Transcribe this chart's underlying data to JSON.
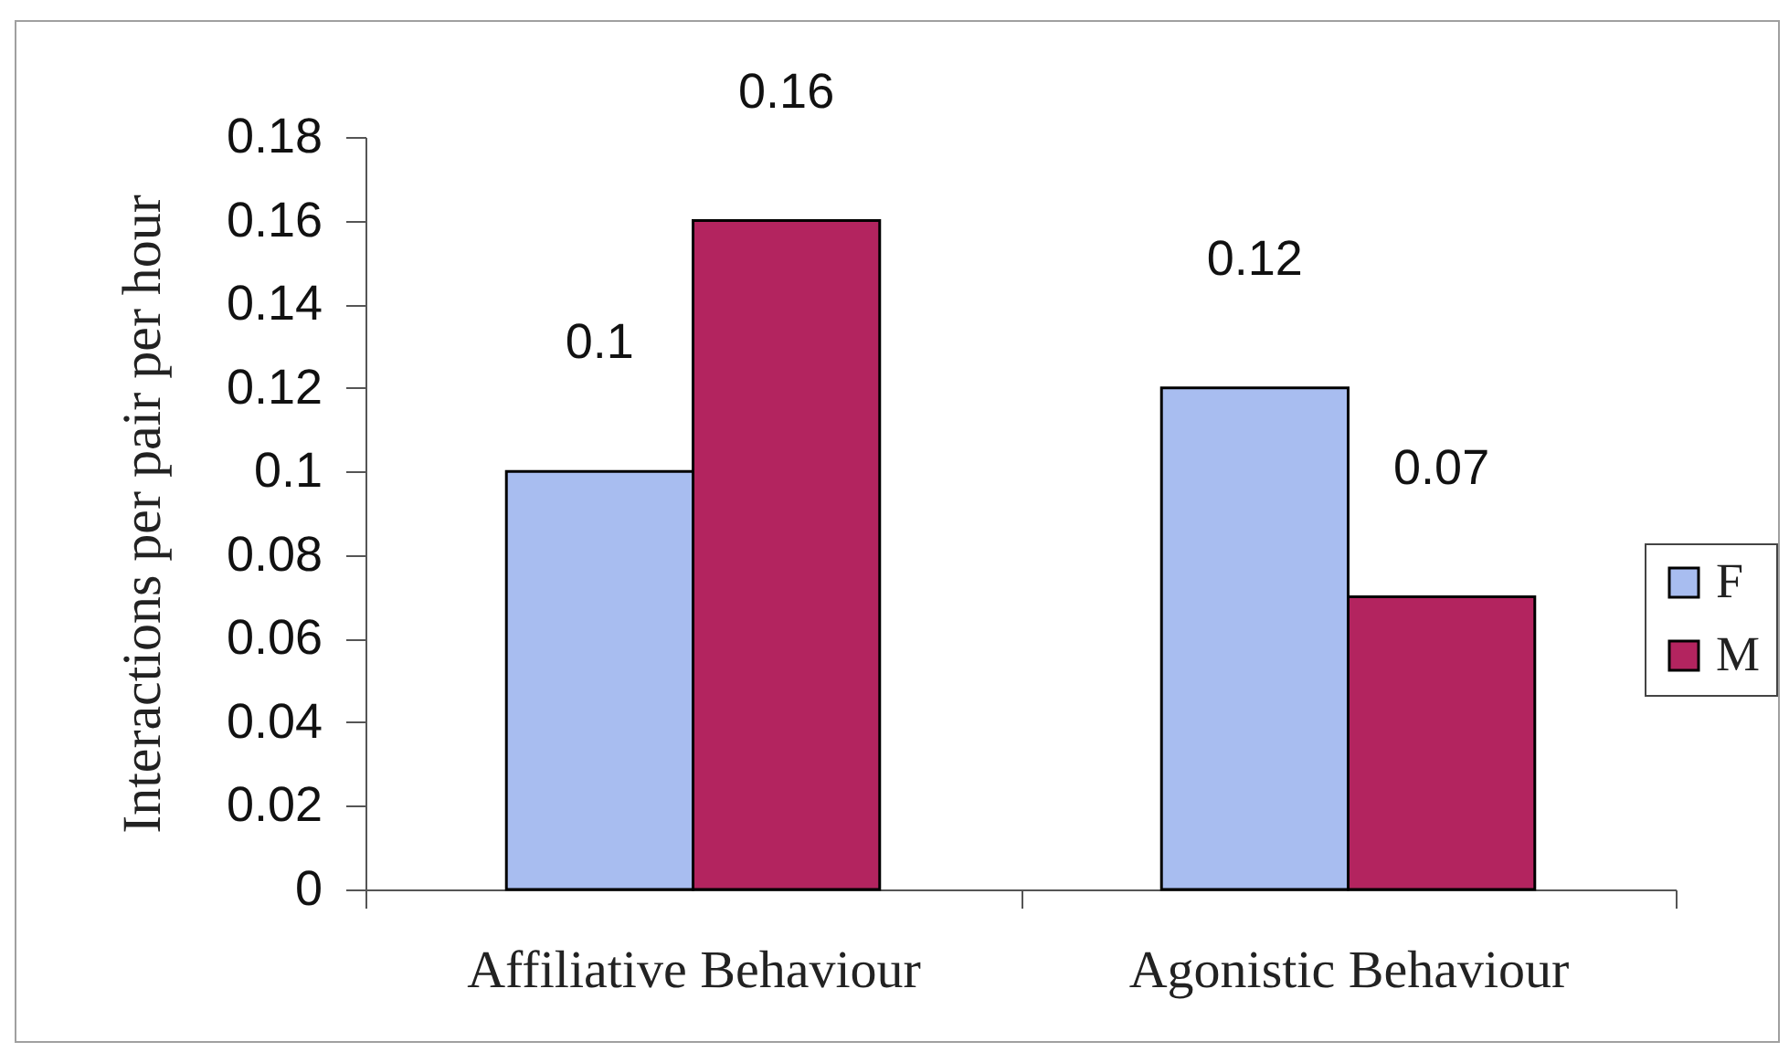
{
  "chart_data": {
    "type": "bar",
    "ylabel": "Interactions per pair per hour",
    "categories": [
      "Affiliative Behaviour",
      "Agonistic Behaviour"
    ],
    "series": [
      {
        "name": "F",
        "color": "#a8bdf0",
        "values": [
          0.1,
          0.12
        ]
      },
      {
        "name": "M",
        "color": "#b3245f",
        "values": [
          0.16,
          0.07
        ]
      }
    ],
    "data_labels": true,
    "ylim": [
      0,
      0.18
    ],
    "yticks": [
      0,
      0.02,
      0.04,
      0.06,
      0.08,
      0.1,
      0.12,
      0.14,
      0.16,
      0.18
    ],
    "legend": "right"
  }
}
